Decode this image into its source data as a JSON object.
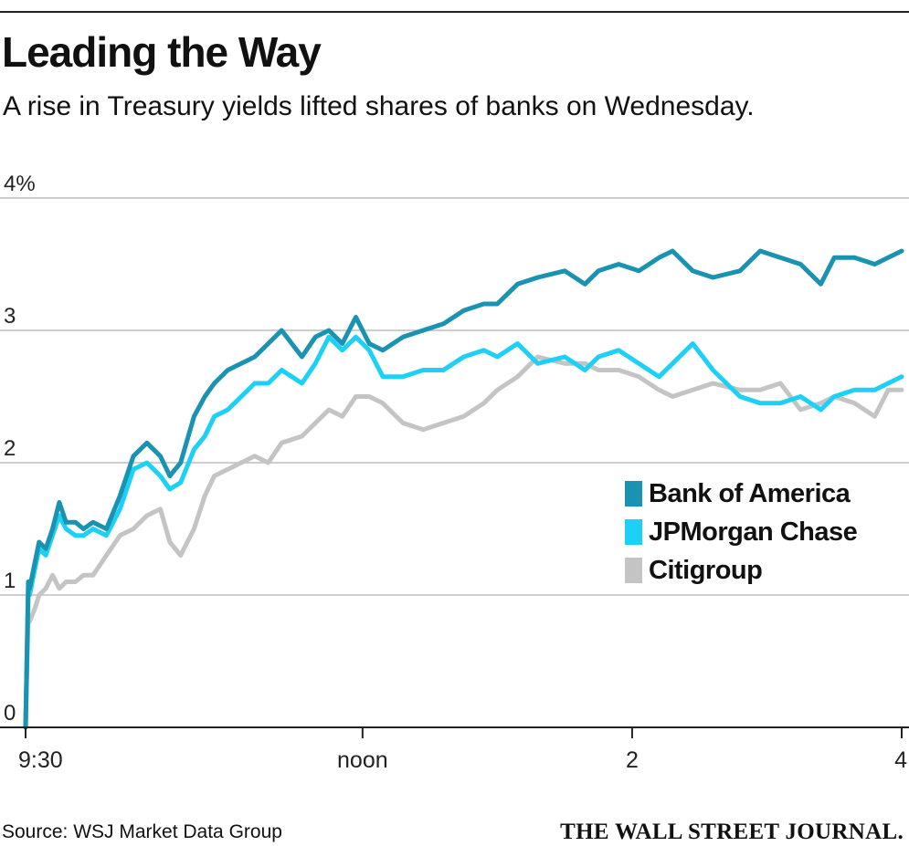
{
  "header": {
    "title": "Leading the Way",
    "subtitle": "A rise in Treasury yields lifted shares of banks on Wednesday."
  },
  "footer": {
    "source": "Source: WSJ Market Data Group",
    "brand": "THE WALL STREET JOURNAL."
  },
  "colors": {
    "bank_of_america": "#1a93b3",
    "jpmorgan_chase": "#1dd1f6",
    "citigroup": "#c4c4c4",
    "gridline": "#bdbdbd",
    "axis": "#222222"
  },
  "chart_data": {
    "type": "line",
    "x_unit": "time of day (hours)",
    "xlim": [
      9.5,
      16
    ],
    "ylim": [
      0,
      4
    ],
    "y_unit": "%",
    "grid": true,
    "legend_position": "right",
    "x_ticks": [
      {
        "value": 9.5,
        "label": "9:30"
      },
      {
        "value": 12,
        "label": "noon"
      },
      {
        "value": 14,
        "label": "2"
      },
      {
        "value": 16,
        "label": "4"
      }
    ],
    "y_ticks": [
      {
        "value": 0,
        "label": "0"
      },
      {
        "value": 1,
        "label": "1"
      },
      {
        "value": 2,
        "label": "2"
      },
      {
        "value": 3,
        "label": "3"
      },
      {
        "value": 4,
        "label": "4%"
      }
    ],
    "series": [
      {
        "name": "Bank of America",
        "color": "#1a93b3",
        "x": [
          9.5,
          9.52,
          9.53,
          9.57,
          9.6,
          9.65,
          9.7,
          9.75,
          9.8,
          9.87,
          9.93,
          10.0,
          10.1,
          10.2,
          10.3,
          10.4,
          10.5,
          10.57,
          10.65,
          10.75,
          10.83,
          10.9,
          11.0,
          11.1,
          11.2,
          11.3,
          11.4,
          11.55,
          11.65,
          11.75,
          11.85,
          11.95,
          12.05,
          12.15,
          12.3,
          12.45,
          12.6,
          12.75,
          12.9,
          13.0,
          13.15,
          13.3,
          13.5,
          13.65,
          13.75,
          13.9,
          14.05,
          14.2,
          14.3,
          14.45,
          14.6,
          14.8,
          14.95,
          15.1,
          15.25,
          15.4,
          15.5,
          15.65,
          15.8,
          15.9,
          16.0
        ],
        "values": [
          0.0,
          1.1,
          1.05,
          1.25,
          1.4,
          1.35,
          1.5,
          1.7,
          1.55,
          1.55,
          1.5,
          1.55,
          1.5,
          1.75,
          2.05,
          2.15,
          2.05,
          1.9,
          2.0,
          2.35,
          2.5,
          2.6,
          2.7,
          2.75,
          2.8,
          2.9,
          3.0,
          2.8,
          2.95,
          3.0,
          2.9,
          3.1,
          2.9,
          2.85,
          2.95,
          3.0,
          3.05,
          3.15,
          3.2,
          3.2,
          3.35,
          3.4,
          3.45,
          3.35,
          3.45,
          3.5,
          3.45,
          3.55,
          3.6,
          3.45,
          3.4,
          3.45,
          3.6,
          3.55,
          3.5,
          3.35,
          3.55,
          3.55,
          3.5,
          3.55,
          3.6
        ]
      },
      {
        "name": "JPMorgan Chase",
        "color": "#1dd1f6",
        "x": [
          9.5,
          9.52,
          9.53,
          9.57,
          9.6,
          9.65,
          9.7,
          9.75,
          9.8,
          9.87,
          9.93,
          10.0,
          10.1,
          10.2,
          10.3,
          10.4,
          10.5,
          10.57,
          10.65,
          10.75,
          10.83,
          10.9,
          11.0,
          11.1,
          11.2,
          11.3,
          11.4,
          11.55,
          11.65,
          11.75,
          11.85,
          11.95,
          12.05,
          12.15,
          12.3,
          12.45,
          12.6,
          12.75,
          12.9,
          13.0,
          13.15,
          13.3,
          13.5,
          13.65,
          13.75,
          13.9,
          14.05,
          14.2,
          14.3,
          14.45,
          14.6,
          14.8,
          14.95,
          15.1,
          15.25,
          15.4,
          15.5,
          15.65,
          15.8,
          15.9,
          16.0
        ],
        "values": [
          0.0,
          1.05,
          1.0,
          1.2,
          1.35,
          1.3,
          1.45,
          1.6,
          1.5,
          1.45,
          1.45,
          1.5,
          1.45,
          1.65,
          1.95,
          2.0,
          1.9,
          1.8,
          1.85,
          2.1,
          2.2,
          2.35,
          2.4,
          2.5,
          2.6,
          2.6,
          2.7,
          2.6,
          2.75,
          2.95,
          2.85,
          2.95,
          2.85,
          2.65,
          2.65,
          2.7,
          2.7,
          2.8,
          2.85,
          2.8,
          2.9,
          2.75,
          2.8,
          2.7,
          2.8,
          2.85,
          2.75,
          2.65,
          2.75,
          2.9,
          2.7,
          2.5,
          2.45,
          2.45,
          2.5,
          2.4,
          2.5,
          2.55,
          2.55,
          2.6,
          2.65
        ]
      },
      {
        "name": "Citigroup",
        "color": "#c4c4c4",
        "x": [
          9.5,
          9.52,
          9.53,
          9.57,
          9.6,
          9.65,
          9.7,
          9.75,
          9.8,
          9.87,
          9.93,
          10.0,
          10.1,
          10.2,
          10.3,
          10.4,
          10.5,
          10.57,
          10.65,
          10.75,
          10.83,
          10.9,
          11.0,
          11.1,
          11.2,
          11.3,
          11.4,
          11.55,
          11.65,
          11.75,
          11.85,
          11.95,
          12.05,
          12.15,
          12.3,
          12.45,
          12.6,
          12.75,
          12.9,
          13.0,
          13.15,
          13.3,
          13.5,
          13.65,
          13.75,
          13.9,
          14.05,
          14.2,
          14.3,
          14.45,
          14.6,
          14.8,
          14.95,
          15.1,
          15.25,
          15.4,
          15.5,
          15.65,
          15.8,
          15.9,
          16.0
        ],
        "values": [
          0.0,
          0.85,
          0.8,
          0.9,
          1.0,
          1.05,
          1.15,
          1.05,
          1.1,
          1.1,
          1.15,
          1.15,
          1.3,
          1.45,
          1.5,
          1.6,
          1.65,
          1.4,
          1.3,
          1.5,
          1.75,
          1.9,
          1.95,
          2.0,
          2.05,
          2.0,
          2.15,
          2.2,
          2.3,
          2.4,
          2.35,
          2.5,
          2.5,
          2.45,
          2.3,
          2.25,
          2.3,
          2.35,
          2.45,
          2.55,
          2.65,
          2.8,
          2.75,
          2.75,
          2.7,
          2.7,
          2.65,
          2.55,
          2.5,
          2.55,
          2.6,
          2.55,
          2.55,
          2.6,
          2.4,
          2.45,
          2.5,
          2.45,
          2.35,
          2.55,
          2.55
        ]
      }
    ]
  }
}
